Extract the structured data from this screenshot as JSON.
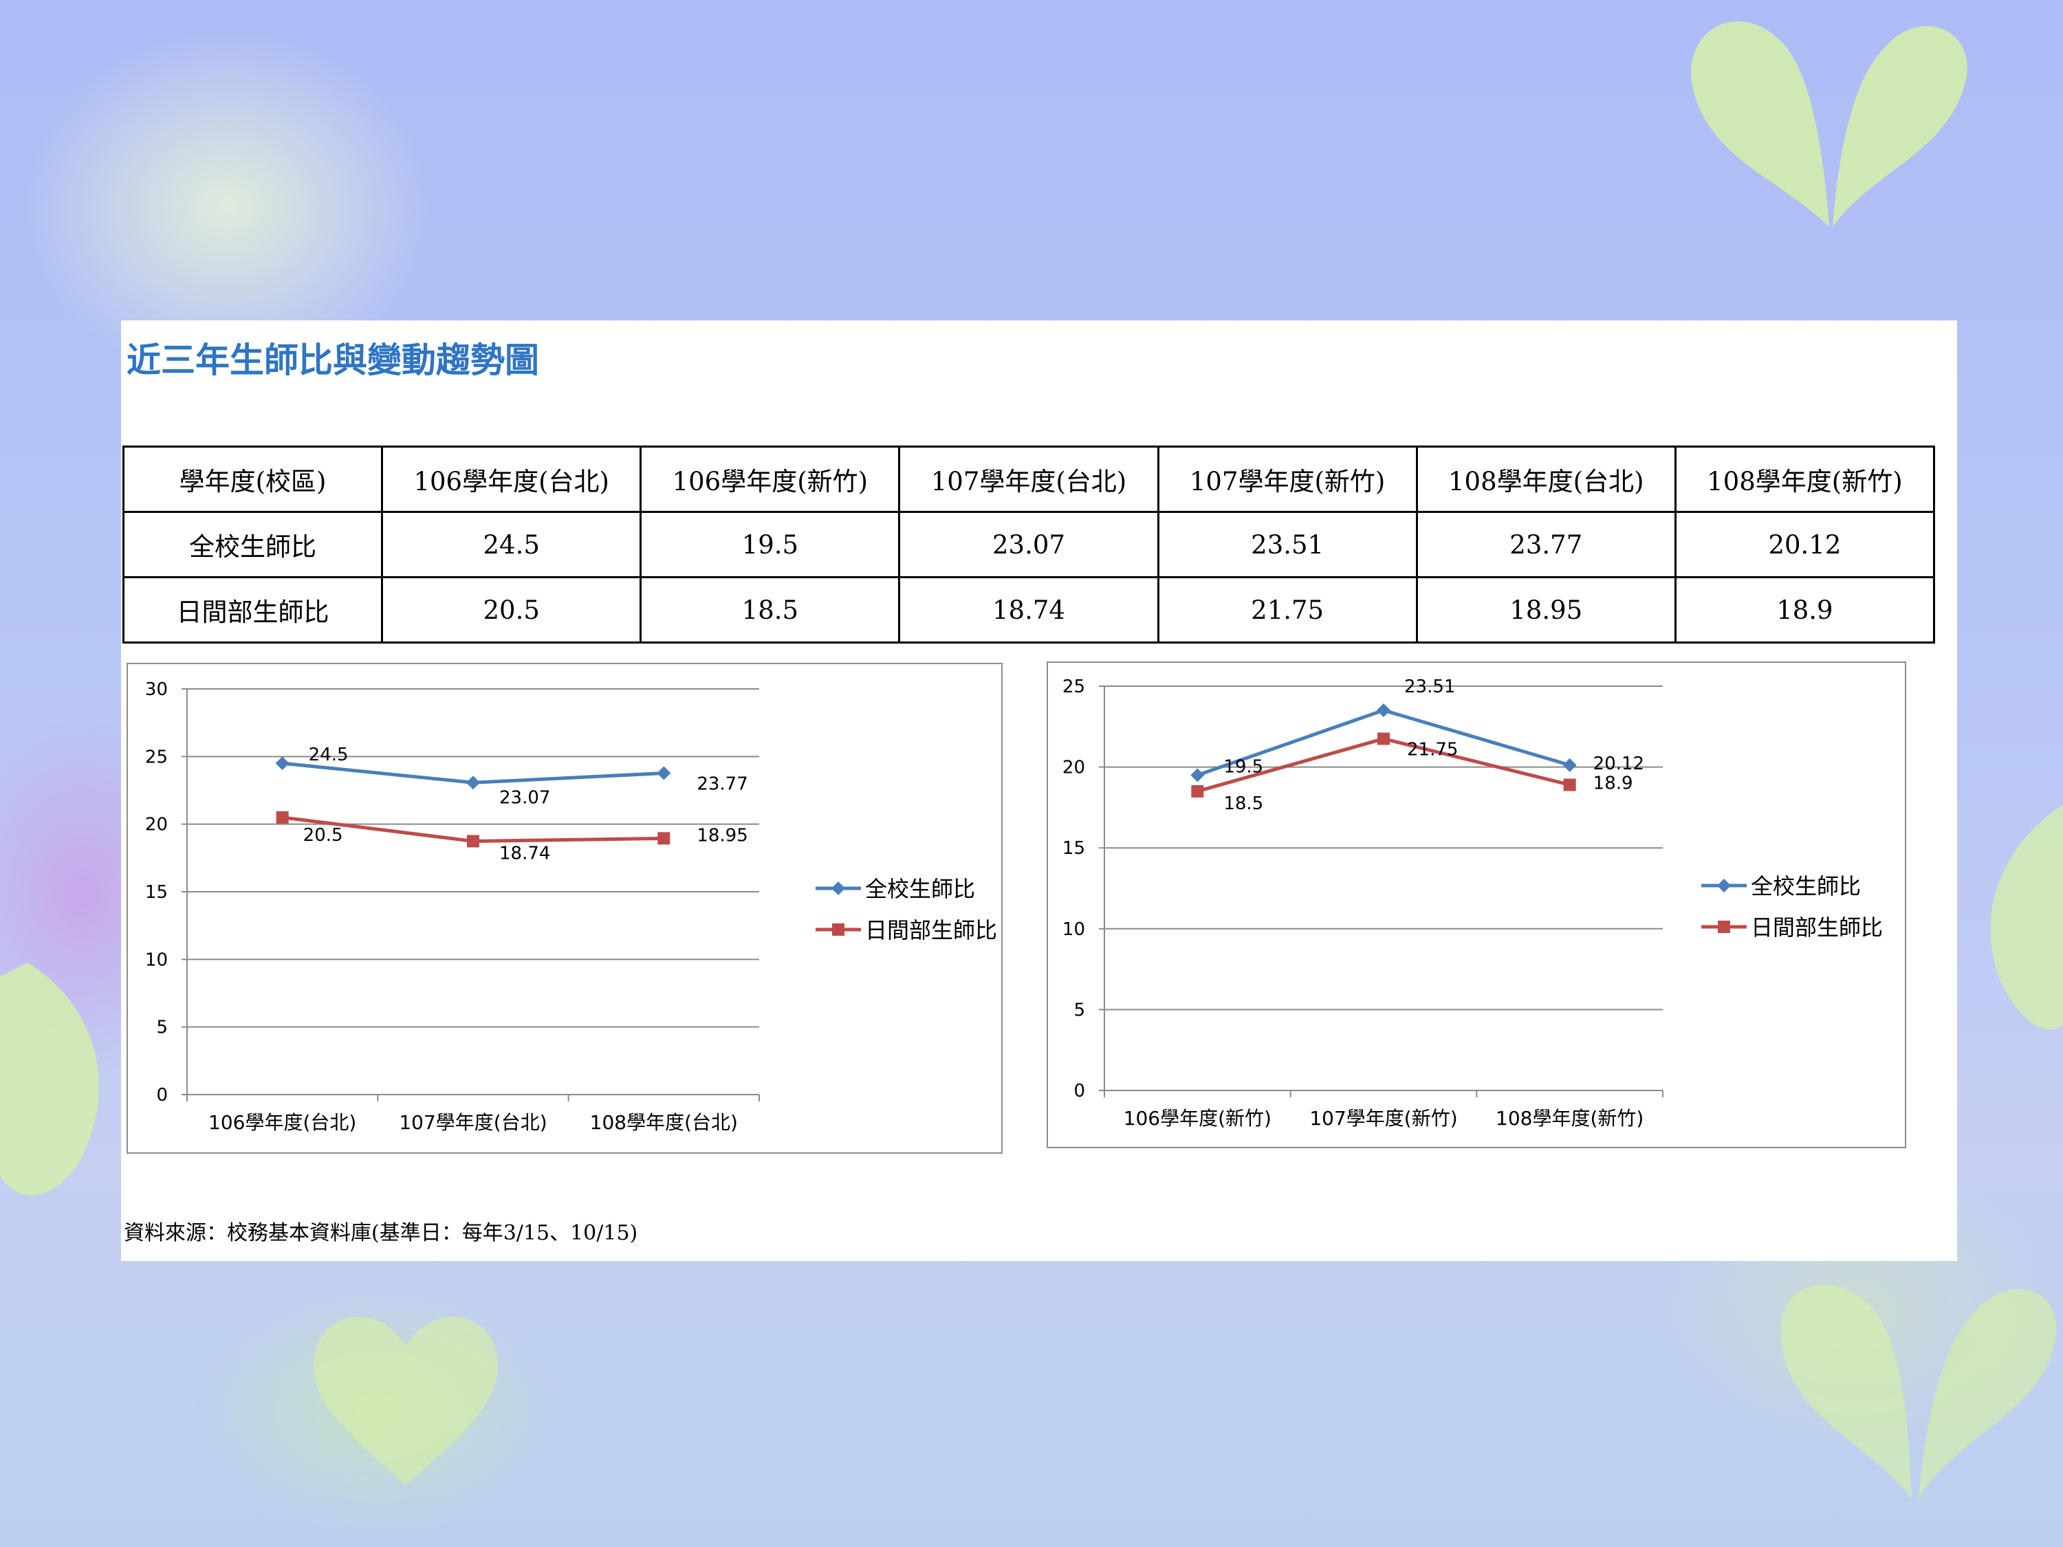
{
  "title": "近三年生師比與變動趨勢圖",
  "table": {
    "header": [
      "學年度(校區)",
      "106學年度(台北)",
      "106學年度(新竹)",
      "107學年度(台北)",
      "107學年度(新竹)",
      "108學年度(台北)",
      "108學年度(新竹)"
    ],
    "rows": [
      [
        "全校生師比",
        "24.5",
        "19.5",
        "23.07",
        "23.51",
        "23.77",
        "20.12"
      ],
      [
        "日間部生師比",
        "20.5",
        "18.5",
        "18.74",
        "21.75",
        "18.95",
        "18.9"
      ]
    ]
  },
  "chart_data": [
    {
      "type": "line",
      "categories": [
        "106學年度(台北)",
        "107學年度(台北)",
        "108學年度(台北)"
      ],
      "series": [
        {
          "name": "全校生師比",
          "values": [
            24.5,
            23.07,
            23.77
          ],
          "color": "#4a7ebb",
          "marker": "diamond"
        },
        {
          "name": "日間部生師比",
          "values": [
            20.5,
            18.74,
            18.95
          ],
          "color": "#be4b48",
          "marker": "square"
        }
      ],
      "ylim": [
        0,
        30
      ],
      "yticks": [
        0,
        5,
        10,
        15,
        20,
        25,
        30
      ],
      "legend": "right",
      "grid": true
    },
    {
      "type": "line",
      "categories": [
        "106學年度(新竹)",
        "107學年度(新竹)",
        "108學年度(新竹)"
      ],
      "series": [
        {
          "name": "全校生師比",
          "values": [
            19.5,
            23.51,
            20.12
          ],
          "color": "#4a7ebb",
          "marker": "diamond"
        },
        {
          "name": "日間部生師比",
          "values": [
            18.5,
            21.75,
            18.9
          ],
          "color": "#be4b48",
          "marker": "square"
        }
      ],
      "ylim": [
        0,
        25
      ],
      "yticks": [
        0,
        5,
        10,
        15,
        20,
        25
      ],
      "legend": "right",
      "grid": true
    }
  ],
  "source": "資料來源：校務基本資料庫(基準日：每年3/15、10/15)"
}
